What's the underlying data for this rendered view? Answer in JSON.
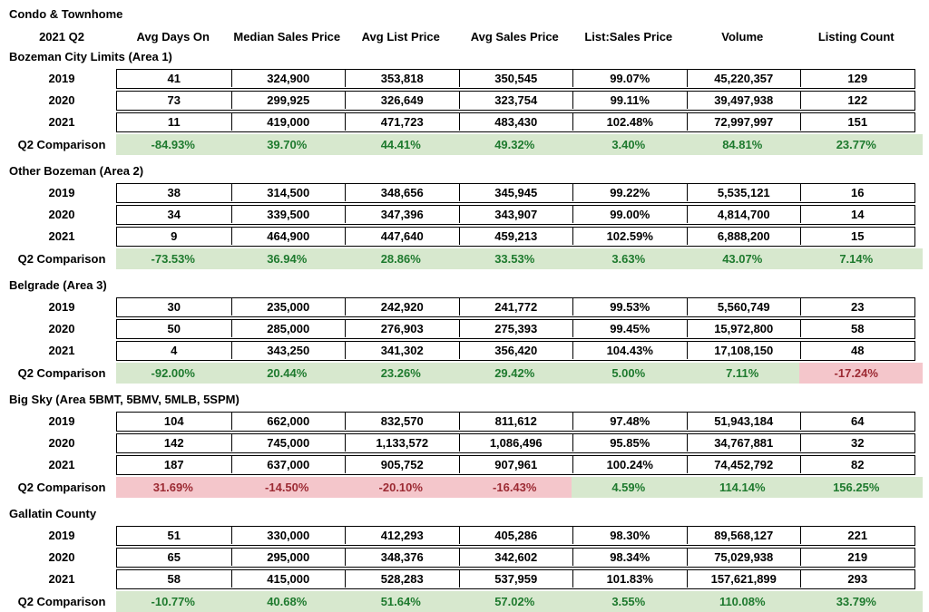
{
  "title": "Condo & Townhome",
  "period_label": "2021 Q2",
  "columns": [
    "Avg Days On",
    "Median Sales Price",
    "Avg List Price",
    "Avg Sales Price",
    "List:Sales Price",
    "Volume",
    "Listing Count"
  ],
  "comparison_label": "Q2 Comparison",
  "colors": {
    "good_bg": "#d7e8ce",
    "good_text": "#1e7a2e",
    "bad_bg": "#f4c6cb",
    "bad_text": "#9c2a33",
    "border": "#000000",
    "text": "#000000",
    "background": "#ffffff"
  },
  "sections": [
    {
      "name": "Bozeman City Limits (Area 1)",
      "rows": [
        {
          "year": "2019",
          "values": [
            "41",
            "324,900",
            "353,818",
            "350,545",
            "99.07%",
            "45,220,357",
            "129"
          ]
        },
        {
          "year": "2020",
          "values": [
            "73",
            "299,925",
            "326,649",
            "323,754",
            "99.11%",
            "39,497,938",
            "122"
          ]
        },
        {
          "year": "2021",
          "values": [
            "11",
            "419,000",
            "471,723",
            "483,430",
            "102.48%",
            "72,997,997",
            "151"
          ]
        }
      ],
      "comparison": {
        "values": [
          "-84.93%",
          "39.70%",
          "44.41%",
          "49.32%",
          "3.40%",
          "84.81%",
          "23.77%"
        ],
        "states": [
          "good",
          "good",
          "good",
          "good",
          "good",
          "good",
          "good"
        ]
      }
    },
    {
      "name": "Other Bozeman (Area 2)",
      "rows": [
        {
          "year": "2019",
          "values": [
            "38",
            "314,500",
            "348,656",
            "345,945",
            "99.22%",
            "5,535,121",
            "16"
          ]
        },
        {
          "year": "2020",
          "values": [
            "34",
            "339,500",
            "347,396",
            "343,907",
            "99.00%",
            "4,814,700",
            "14"
          ]
        },
        {
          "year": "2021",
          "values": [
            "9",
            "464,900",
            "447,640",
            "459,213",
            "102.59%",
            "6,888,200",
            "15"
          ]
        }
      ],
      "comparison": {
        "values": [
          "-73.53%",
          "36.94%",
          "28.86%",
          "33.53%",
          "3.63%",
          "43.07%",
          "7.14%"
        ],
        "states": [
          "good",
          "good",
          "good",
          "good",
          "good",
          "good",
          "good"
        ]
      }
    },
    {
      "name": "Belgrade (Area 3)",
      "rows": [
        {
          "year": "2019",
          "values": [
            "30",
            "235,000",
            "242,920",
            "241,772",
            "99.53%",
            "5,560,749",
            "23"
          ]
        },
        {
          "year": "2020",
          "values": [
            "50",
            "285,000",
            "276,903",
            "275,393",
            "99.45%",
            "15,972,800",
            "58"
          ]
        },
        {
          "year": "2021",
          "values": [
            "4",
            "343,250",
            "341,302",
            "356,420",
            "104.43%",
            "17,108,150",
            "48"
          ]
        }
      ],
      "comparison": {
        "values": [
          "-92.00%",
          "20.44%",
          "23.26%",
          "29.42%",
          "5.00%",
          "7.11%",
          "-17.24%"
        ],
        "states": [
          "good",
          "good",
          "good",
          "good",
          "good",
          "good",
          "bad"
        ]
      }
    },
    {
      "name": "Big Sky (Area 5BMT, 5BMV, 5MLB, 5SPM)",
      "rows": [
        {
          "year": "2019",
          "values": [
            "104",
            "662,000",
            "832,570",
            "811,612",
            "97.48%",
            "51,943,184",
            "64"
          ]
        },
        {
          "year": "2020",
          "values": [
            "142",
            "745,000",
            "1,133,572",
            "1,086,496",
            "95.85%",
            "34,767,881",
            "32"
          ]
        },
        {
          "year": "2021",
          "values": [
            "187",
            "637,000",
            "905,752",
            "907,961",
            "100.24%",
            "74,452,792",
            "82"
          ]
        }
      ],
      "comparison": {
        "values": [
          "31.69%",
          "-14.50%",
          "-20.10%",
          "-16.43%",
          "4.59%",
          "114.14%",
          "156.25%"
        ],
        "states": [
          "bad",
          "bad",
          "bad",
          "bad",
          "good",
          "good",
          "good"
        ]
      }
    },
    {
      "name": "Gallatin County",
      "rows": [
        {
          "year": "2019",
          "values": [
            "51",
            "330,000",
            "412,293",
            "405,286",
            "98.30%",
            "89,568,127",
            "221"
          ]
        },
        {
          "year": "2020",
          "values": [
            "65",
            "295,000",
            "348,376",
            "342,602",
            "98.34%",
            "75,029,938",
            "219"
          ]
        },
        {
          "year": "2021",
          "values": [
            "58",
            "415,000",
            "528,283",
            "537,959",
            "101.83%",
            "157,621,899",
            "293"
          ]
        }
      ],
      "comparison": {
        "values": [
          "-10.77%",
          "40.68%",
          "51.64%",
          "57.02%",
          "3.55%",
          "110.08%",
          "33.79%"
        ],
        "states": [
          "good",
          "good",
          "good",
          "good",
          "good",
          "good",
          "good"
        ]
      }
    }
  ]
}
